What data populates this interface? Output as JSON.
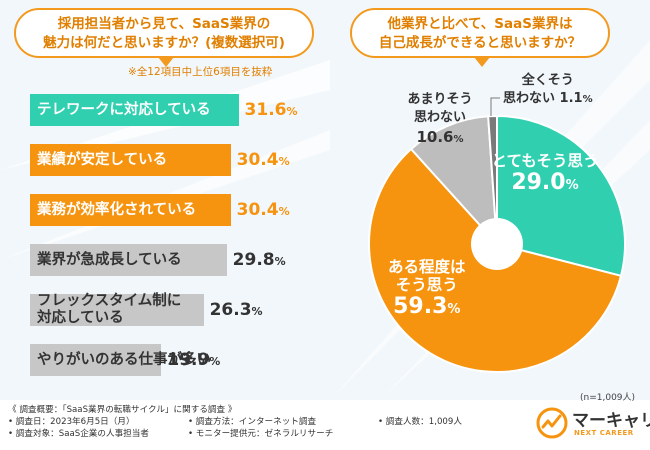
{
  "left": {
    "question_line1": "採用担当者から見て、SaaS業界の",
    "question_line2": "魅力は何だと思いますか？(複数選択可)",
    "note": "※全12項目中上位6項目を抜粋"
  },
  "right": {
    "question_line1": "他業界と比べて、SaaS業界は",
    "question_line2": "自己成長ができると思いますか？",
    "n_note": "(n=1,009人)"
  },
  "chart_data": [
    {
      "type": "bar",
      "orientation": "horizontal",
      "title": "採用担当者から見て、SaaS業界の魅力は何だと思いますか？(複数選択可)",
      "categories": [
        "テレワークに対応している",
        "業績が安定している",
        "業務が効率化されている",
        "業界が急成長している",
        "フレックスタイム制に対応している",
        "やりがいのある仕事が多い"
      ],
      "values": [
        31.6,
        30.4,
        30.4,
        29.8,
        26.3,
        19.9
      ],
      "value_labels": [
        "31.6",
        "30.4",
        "30.4",
        "29.8",
        "26.3",
        "19.9"
      ],
      "unit": "%",
      "bar_label_lines": [
        [
          "テレワークに対応している"
        ],
        [
          "業績が安定している"
        ],
        [
          "業務が効率化されている"
        ],
        [
          "業界が急成長している"
        ],
        [
          "フレックスタイム制に",
          "対応している"
        ],
        [
          "やりがいのある仕事が多い"
        ]
      ],
      "colors": [
        "#2fcfb0",
        "#f6930f",
        "#f6930f",
        "#c7c7c7",
        "#c7c7c7",
        "#c7c7c7"
      ]
    },
    {
      "type": "pie",
      "title": "他業界と比べて、SaaS業界は自己成長ができると思いますか？",
      "donut": true,
      "slices": [
        {
          "label_lines": [
            "とてもそう思う"
          ],
          "value": 29.0,
          "value_label": "29.0",
          "color": "#2fcfb0"
        },
        {
          "label_lines": [
            "ある程度は",
            "そう思う"
          ],
          "value": 59.3,
          "value_label": "59.3",
          "color": "#f6930f"
        },
        {
          "label_lines": [
            "あまりそう",
            "思わない"
          ],
          "value": 10.6,
          "value_label": "10.6",
          "color": "#bdbdbd"
        },
        {
          "label_lines": [
            "全くそう",
            "思わない"
          ],
          "value": 1.1,
          "value_label": "1.1",
          "color": "#7a7a7a"
        }
      ],
      "unit": "%"
    }
  ],
  "footer": {
    "overview": "《 調査概要：「SaaS業界の転職サイクル」に関する調査 》",
    "date": "• 調査日：2023年6月5日（月）",
    "target": "• 調査対象：SaaS企業の人事担当者",
    "method": "• 調査方法：インターネット調査",
    "monitor": "• モニター提供元：ゼネラルリサーチ",
    "count": "• 調査人数：1,009人"
  },
  "logo": {
    "name": "マーキャリ",
    "sub": "NEXT CAREER"
  }
}
